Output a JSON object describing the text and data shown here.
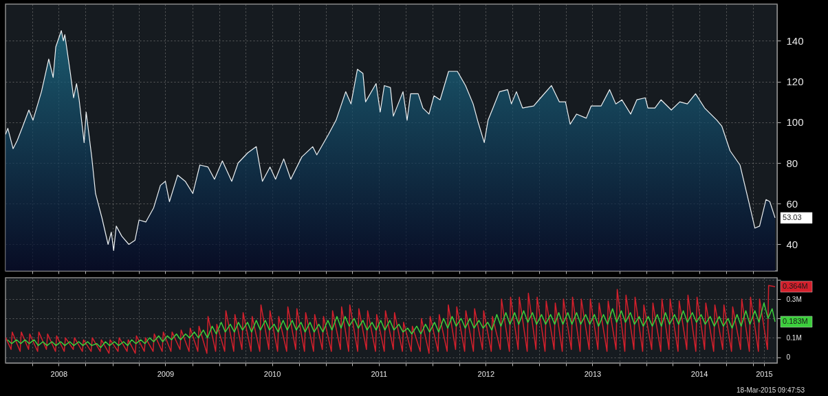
{
  "chart_data": [
    {
      "type": "area",
      "color": "#eef2f4",
      "x": [
        "2008-01-01",
        "2008-01-09",
        "2008-01-27",
        "2008-02-10",
        "2008-02-29",
        "2008-03-21",
        "2008-04-04",
        "2008-05-03",
        "2008-05-28",
        "2008-06-12",
        "2008-06-21",
        "2008-07-10",
        "2008-07-17",
        "2008-07-22",
        "2008-08-10",
        "2008-08-21",
        "2008-08-31",
        "2008-09-09",
        "2008-09-26",
        "2008-10-03",
        "2008-10-22",
        "2008-11-04",
        "2008-11-26",
        "2008-12-17",
        "2008-12-28",
        "2009-01-05",
        "2009-01-14",
        "2009-02-02",
        "2009-02-26",
        "2009-03-19",
        "2009-04-02",
        "2009-04-25",
        "2009-05-22",
        "2009-06-14",
        "2009-07-01",
        "2009-07-15",
        "2009-08-12",
        "2009-09-07",
        "2009-10-03",
        "2009-10-27",
        "2009-11-24",
        "2009-12-16",
        "2010-01-12",
        "2010-02-13",
        "2010-03-07",
        "2010-04-09",
        "2010-05-08",
        "2010-05-29",
        "2010-06-24",
        "2010-07-13",
        "2010-08-10",
        "2010-09-03",
        "2010-10-11",
        "2010-11-17",
        "2010-12-01",
        "2011-01-10",
        "2011-02-05",
        "2011-03-10",
        "2011-03-28",
        "2011-04-19",
        "2011-05-08",
        "2011-05-17",
        "2011-06-22",
        "2011-07-06",
        "2011-07-20",
        "2011-08-10",
        "2011-08-20",
        "2011-09-22",
        "2011-10-06",
        "2011-10-18",
        "2011-11-13",
        "2011-11-29",
        "2011-12-20",
        "2012-01-06",
        "2012-01-27",
        "2012-02-25",
        "2012-03-26",
        "2012-04-23",
        "2012-05-19",
        "2012-06-05",
        "2012-06-26",
        "2012-07-09",
        "2012-07-26",
        "2012-08-17",
        "2012-09-14",
        "2012-09-27",
        "2012-10-14",
        "2012-11-04",
        "2012-12-12",
        "2013-01-05",
        "2013-02-11",
        "2013-03-10",
        "2013-03-31",
        "2013-04-16",
        "2013-05-08",
        "2013-06-10",
        "2013-06-27",
        "2013-07-31",
        "2013-08-29",
        "2013-09-19",
        "2013-10-10",
        "2013-11-09",
        "2013-11-30",
        "2013-12-29",
        "2014-01-07",
        "2014-01-31",
        "2014-02-21",
        "2014-03-28",
        "2014-04-26",
        "2014-05-22",
        "2014-06-19",
        "2014-07-20",
        "2014-08-31",
        "2014-09-17",
        "2014-10-15",
        "2014-11-18",
        "2014-12-18",
        "2015-01-08",
        "2015-01-24",
        "2015-02-15",
        "2015-02-28",
        "2015-03-18"
      ],
      "values": [
        94,
        97,
        87,
        91,
        98,
        106,
        101,
        115,
        131,
        122,
        137,
        145,
        140,
        143,
        124,
        112,
        119,
        111,
        90,
        105,
        83,
        65,
        53,
        40,
        46,
        37,
        49,
        44,
        40,
        42,
        52,
        51,
        58,
        69,
        71,
        61,
        74,
        71,
        65,
        79,
        78,
        72,
        81,
        71,
        80,
        85,
        88,
        71,
        78,
        72,
        82,
        72,
        83,
        88,
        84,
        94,
        101,
        115,
        109,
        126,
        124,
        110,
        119,
        105,
        118,
        117,
        103,
        115,
        101,
        114,
        114,
        107,
        104,
        113,
        111,
        125,
        125,
        118,
        109,
        100,
        90,
        101,
        107,
        115,
        116,
        109,
        115,
        107,
        108,
        112,
        118,
        110,
        110,
        99,
        104,
        102,
        108,
        108,
        116,
        109,
        111,
        104,
        111,
        112,
        107,
        107,
        111,
        106,
        110,
        109,
        114,
        107,
        101,
        98,
        86,
        79,
        61,
        48,
        49,
        62,
        61,
        53.03
      ],
      "xlim": [
        "2008-01-01",
        "2015-03-25"
      ],
      "ylim": [
        27,
        158
      ],
      "yticks": [
        40,
        60,
        80,
        100,
        120,
        140
      ],
      "xticks": [
        {
          "value": "2008-04-01",
          "label": null
        },
        {
          "value": "2008-07-01",
          "label": null
        },
        {
          "value": "2008-10-01",
          "label": null
        },
        {
          "value": "2009-01-01",
          "label": null
        },
        {
          "value": "2009-04-01",
          "label": null
        },
        {
          "value": "2009-07-01",
          "label": null
        },
        {
          "value": "2009-10-01",
          "label": null
        },
        {
          "value": "2010-01-01",
          "label": null
        },
        {
          "value": "2010-04-01",
          "label": null
        },
        {
          "value": "2010-07-01",
          "label": null
        },
        {
          "value": "2010-10-01",
          "label": null
        },
        {
          "value": "2011-01-01",
          "label": null
        },
        {
          "value": "2011-04-01",
          "label": null
        },
        {
          "value": "2011-07-01",
          "label": null
        },
        {
          "value": "2011-10-01",
          "label": null
        },
        {
          "value": "2012-01-01",
          "label": null
        },
        {
          "value": "2012-04-01",
          "label": null
        },
        {
          "value": "2012-07-01",
          "label": null
        },
        {
          "value": "2012-10-01",
          "label": null
        },
        {
          "value": "2013-01-01",
          "label": null
        },
        {
          "value": "2013-04-01",
          "label": null
        },
        {
          "value": "2013-07-01",
          "label": null
        },
        {
          "value": "2013-10-01",
          "label": null
        },
        {
          "value": "2014-01-01",
          "label": null
        },
        {
          "value": "2014-04-01",
          "label": null
        },
        {
          "value": "2014-07-01",
          "label": null
        },
        {
          "value": "2014-10-01",
          "label": null
        },
        {
          "value": "2015-01-01",
          "label": null
        }
      ],
      "tick_labels": "y",
      "grid": true,
      "annotations": [
        {
          "text": "53.03",
          "x": "2015-03-18",
          "y": 53.03
        }
      ]
    },
    {
      "type": "line",
      "series": [
        {
          "color": "#d4202c",
          "x": [
            "2008-01-02",
            "2008-01-20",
            "2008-01-24",
            "2008-02-20",
            "2008-02-24",
            "2008-03-20",
            "2008-03-24",
            "2008-04-20",
            "2008-04-24",
            "2008-05-20",
            "2008-05-24",
            "2008-06-20",
            "2008-06-24",
            "2008-07-20",
            "2008-07-24",
            "2008-08-20",
            "2008-08-24",
            "2008-09-20",
            "2008-09-24",
            "2008-10-20",
            "2008-10-24",
            "2008-11-20",
            "2008-11-24",
            "2008-12-20",
            "2008-12-24",
            "2009-01-20",
            "2009-01-24",
            "2009-02-20",
            "2009-02-24",
            "2009-03-20",
            "2009-03-24",
            "2009-04-20",
            "2009-04-24",
            "2009-05-20",
            "2009-05-24",
            "2009-06-20",
            "2009-06-24",
            "2009-07-20",
            "2009-07-24",
            "2009-08-20",
            "2009-08-24",
            "2009-09-20",
            "2009-09-24",
            "2009-10-20",
            "2009-10-24",
            "2009-11-20",
            "2009-11-24",
            "2009-12-20",
            "2009-12-24",
            "2010-01-20",
            "2010-01-24",
            "2010-02-20",
            "2010-02-24",
            "2010-03-20",
            "2010-03-24",
            "2010-04-20",
            "2010-04-24",
            "2010-05-20",
            "2010-05-24",
            "2010-06-20",
            "2010-06-24",
            "2010-07-20",
            "2010-07-24",
            "2010-08-20",
            "2010-08-24",
            "2010-09-20",
            "2010-09-24",
            "2010-10-20",
            "2010-10-24",
            "2010-11-20",
            "2010-11-24",
            "2010-12-20",
            "2010-12-24",
            "2011-01-20",
            "2011-01-24",
            "2011-02-20",
            "2011-02-24",
            "2011-03-20",
            "2011-03-24",
            "2011-04-20",
            "2011-04-24",
            "2011-05-20",
            "2011-05-24",
            "2011-06-20",
            "2011-06-24",
            "2011-07-20",
            "2011-07-24",
            "2011-08-20",
            "2011-08-24",
            "2011-09-20",
            "2011-09-24",
            "2011-10-20",
            "2011-10-24",
            "2011-11-20",
            "2011-11-24",
            "2011-12-20",
            "2011-12-24",
            "2012-01-20",
            "2012-01-24",
            "2012-02-20",
            "2012-02-24",
            "2012-03-20",
            "2012-03-24",
            "2012-04-20",
            "2012-04-24",
            "2012-05-20",
            "2012-05-24",
            "2012-06-20",
            "2012-06-24",
            "2012-07-20",
            "2012-07-24",
            "2012-08-20",
            "2012-08-24",
            "2012-09-20",
            "2012-09-24",
            "2012-10-20",
            "2012-10-24",
            "2012-11-20",
            "2012-11-24",
            "2012-12-20",
            "2012-12-24",
            "2013-01-20",
            "2013-01-24",
            "2013-02-20",
            "2013-02-24",
            "2013-03-20",
            "2013-03-24",
            "2013-04-20",
            "2013-04-24",
            "2013-05-20",
            "2013-05-24",
            "2013-06-20",
            "2013-06-24",
            "2013-07-20",
            "2013-07-24",
            "2013-08-20",
            "2013-08-24",
            "2013-09-20",
            "2013-09-24",
            "2013-10-20",
            "2013-10-24",
            "2013-11-20",
            "2013-11-24",
            "2013-12-20",
            "2013-12-24",
            "2014-01-20",
            "2014-01-24",
            "2014-02-20",
            "2014-02-24",
            "2014-03-20",
            "2014-03-24",
            "2014-04-20",
            "2014-04-24",
            "2014-05-20",
            "2014-05-24",
            "2014-06-20",
            "2014-06-24",
            "2014-07-20",
            "2014-07-24",
            "2014-08-20",
            "2014-08-24",
            "2014-09-20",
            "2014-09-24",
            "2014-10-20",
            "2014-10-24",
            "2014-11-20",
            "2014-11-24",
            "2014-12-20",
            "2014-12-24",
            "2015-01-20",
            "2015-01-24",
            "2015-02-20",
            "2015-02-24",
            "2015-03-18"
          ],
          "values": [
            0.1,
            0.04,
            0.13,
            0.03,
            0.13,
            0.04,
            0.12,
            0.03,
            0.13,
            0.04,
            0.12,
            0.03,
            0.11,
            0.03,
            0.1,
            0.04,
            0.1,
            0.03,
            0.09,
            0.03,
            0.1,
            0.03,
            0.09,
            0.02,
            0.09,
            0.03,
            0.1,
            0.03,
            0.09,
            0.02,
            0.11,
            0.03,
            0.1,
            0.03,
            0.12,
            0.03,
            0.13,
            0.03,
            0.13,
            0.04,
            0.14,
            0.03,
            0.15,
            0.03,
            0.16,
            0.02,
            0.21,
            0.03,
            0.17,
            0.03,
            0.24,
            0.03,
            0.22,
            0.04,
            0.23,
            0.03,
            0.21,
            0.03,
            0.27,
            0.04,
            0.24,
            0.03,
            0.21,
            0.03,
            0.26,
            0.04,
            0.25,
            0.03,
            0.23,
            0.03,
            0.22,
            0.04,
            0.21,
            0.03,
            0.24,
            0.04,
            0.26,
            0.03,
            0.27,
            0.03,
            0.25,
            0.04,
            0.24,
            0.03,
            0.22,
            0.03,
            0.24,
            0.04,
            0.23,
            0.03,
            0.18,
            0.03,
            0.16,
            0.03,
            0.2,
            0.02,
            0.21,
            0.03,
            0.22,
            0.03,
            0.27,
            0.04,
            0.26,
            0.03,
            0.24,
            0.03,
            0.25,
            0.04,
            0.24,
            0.03,
            0.21,
            0.04,
            0.3,
            0.03,
            0.31,
            0.04,
            0.31,
            0.03,
            0.33,
            0.04,
            0.31,
            0.03,
            0.29,
            0.04,
            0.28,
            0.03,
            0.3,
            0.04,
            0.31,
            0.03,
            0.3,
            0.04,
            0.3,
            0.04,
            0.28,
            0.03,
            0.29,
            0.04,
            0.35,
            0.03,
            0.32,
            0.04,
            0.31,
            0.03,
            0.27,
            0.04,
            0.28,
            0.03,
            0.3,
            0.04,
            0.3,
            0.03,
            0.29,
            0.04,
            0.32,
            0.03,
            0.31,
            0.04,
            0.28,
            0.03,
            0.27,
            0.04,
            0.27,
            0.03,
            0.26,
            0.04,
            0.3,
            0.03,
            0.31,
            0.03,
            0.3,
            0.04,
            0.37,
            0.364
          ]
        },
        {
          "color": "#3ccf3c",
          "x": [
            "2008-01-08",
            "2008-01-22",
            "2008-02-08",
            "2008-02-22",
            "2008-03-08",
            "2008-03-22",
            "2008-04-08",
            "2008-04-22",
            "2008-05-08",
            "2008-05-22",
            "2008-06-08",
            "2008-06-22",
            "2008-07-08",
            "2008-07-22",
            "2008-08-08",
            "2008-08-22",
            "2008-09-08",
            "2008-09-22",
            "2008-10-08",
            "2008-10-22",
            "2008-11-08",
            "2008-11-22",
            "2008-12-08",
            "2008-12-22",
            "2009-01-08",
            "2009-01-22",
            "2009-02-08",
            "2009-02-22",
            "2009-03-08",
            "2009-03-22",
            "2009-04-08",
            "2009-04-22",
            "2009-05-08",
            "2009-05-22",
            "2009-06-08",
            "2009-06-22",
            "2009-07-08",
            "2009-07-22",
            "2009-08-08",
            "2009-08-22",
            "2009-09-08",
            "2009-09-22",
            "2009-10-08",
            "2009-10-22",
            "2009-11-08",
            "2009-11-22",
            "2009-12-08",
            "2009-12-22",
            "2010-01-08",
            "2010-01-22",
            "2010-02-08",
            "2010-02-22",
            "2010-03-08",
            "2010-03-22",
            "2010-04-08",
            "2010-04-22",
            "2010-05-08",
            "2010-05-22",
            "2010-06-08",
            "2010-06-22",
            "2010-07-08",
            "2010-07-22",
            "2010-08-08",
            "2010-08-22",
            "2010-09-08",
            "2010-09-22",
            "2010-10-08",
            "2010-10-22",
            "2010-11-08",
            "2010-11-22",
            "2010-12-08",
            "2010-12-22",
            "2011-01-08",
            "2011-01-22",
            "2011-02-08",
            "2011-02-22",
            "2011-03-08",
            "2011-03-22",
            "2011-04-08",
            "2011-04-22",
            "2011-05-08",
            "2011-05-22",
            "2011-06-08",
            "2011-06-22",
            "2011-07-08",
            "2011-07-22",
            "2011-08-08",
            "2011-08-22",
            "2011-09-08",
            "2011-09-22",
            "2011-10-08",
            "2011-10-22",
            "2011-11-08",
            "2011-11-22",
            "2011-12-08",
            "2011-12-22",
            "2012-01-08",
            "2012-01-22",
            "2012-02-08",
            "2012-02-22",
            "2012-03-08",
            "2012-03-22",
            "2012-04-08",
            "2012-04-22",
            "2012-05-08",
            "2012-05-22",
            "2012-06-08",
            "2012-06-22",
            "2012-07-08",
            "2012-07-22",
            "2012-08-08",
            "2012-08-22",
            "2012-09-08",
            "2012-09-22",
            "2012-10-08",
            "2012-10-22",
            "2012-11-08",
            "2012-11-22",
            "2012-12-08",
            "2012-12-22",
            "2013-01-08",
            "2013-01-22",
            "2013-02-08",
            "2013-02-22",
            "2013-03-08",
            "2013-03-22",
            "2013-04-08",
            "2013-04-22",
            "2013-05-08",
            "2013-05-22",
            "2013-06-08",
            "2013-06-22",
            "2013-07-08",
            "2013-07-22",
            "2013-08-08",
            "2013-08-22",
            "2013-09-08",
            "2013-09-22",
            "2013-10-08",
            "2013-10-22",
            "2013-11-08",
            "2013-11-22",
            "2013-12-08",
            "2013-12-22",
            "2014-01-08",
            "2014-01-22",
            "2014-02-08",
            "2014-02-22",
            "2014-03-08",
            "2014-03-22",
            "2014-04-08",
            "2014-04-22",
            "2014-05-08",
            "2014-05-22",
            "2014-06-08",
            "2014-06-22",
            "2014-07-08",
            "2014-07-22",
            "2014-08-08",
            "2014-08-22",
            "2014-09-08",
            "2014-09-22",
            "2014-10-08",
            "2014-10-22",
            "2014-11-08",
            "2014-11-22",
            "2014-12-08",
            "2014-12-22",
            "2015-01-08",
            "2015-01-22",
            "2015-02-08",
            "2015-02-22",
            "2015-03-08",
            "2015-03-18"
          ],
          "values": [
            0.09,
            0.07,
            0.09,
            0.07,
            0.09,
            0.07,
            0.09,
            0.06,
            0.08,
            0.06,
            0.08,
            0.06,
            0.08,
            0.06,
            0.08,
            0.06,
            0.08,
            0.06,
            0.08,
            0.06,
            0.07,
            0.05,
            0.08,
            0.06,
            0.08,
            0.06,
            0.08,
            0.06,
            0.09,
            0.07,
            0.09,
            0.07,
            0.1,
            0.08,
            0.11,
            0.08,
            0.11,
            0.09,
            0.12,
            0.09,
            0.12,
            0.1,
            0.13,
            0.1,
            0.14,
            0.1,
            0.16,
            0.12,
            0.18,
            0.13,
            0.17,
            0.13,
            0.18,
            0.14,
            0.18,
            0.13,
            0.19,
            0.14,
            0.19,
            0.14,
            0.17,
            0.13,
            0.19,
            0.14,
            0.19,
            0.14,
            0.18,
            0.13,
            0.18,
            0.13,
            0.17,
            0.13,
            0.19,
            0.14,
            0.21,
            0.15,
            0.21,
            0.16,
            0.2,
            0.15,
            0.19,
            0.14,
            0.18,
            0.14,
            0.19,
            0.14,
            0.19,
            0.14,
            0.17,
            0.13,
            0.15,
            0.12,
            0.16,
            0.12,
            0.17,
            0.13,
            0.18,
            0.13,
            0.2,
            0.15,
            0.21,
            0.16,
            0.2,
            0.15,
            0.2,
            0.15,
            0.19,
            0.15,
            0.18,
            0.14,
            0.22,
            0.16,
            0.23,
            0.17,
            0.23,
            0.17,
            0.24,
            0.18,
            0.23,
            0.17,
            0.22,
            0.17,
            0.22,
            0.17,
            0.23,
            0.17,
            0.23,
            0.17,
            0.23,
            0.17,
            0.22,
            0.17,
            0.22,
            0.16,
            0.22,
            0.17,
            0.25,
            0.18,
            0.24,
            0.18,
            0.23,
            0.17,
            0.21,
            0.16,
            0.21,
            0.16,
            0.22,
            0.16,
            0.23,
            0.17,
            0.22,
            0.17,
            0.24,
            0.18,
            0.23,
            0.18,
            0.22,
            0.17,
            0.21,
            0.16,
            0.21,
            0.16,
            0.2,
            0.15,
            0.22,
            0.16,
            0.24,
            0.17,
            0.24,
            0.18,
            0.28,
            0.2,
            0.25,
            0.183
          ]
        }
      ],
      "xlim": [
        "2008-01-01",
        "2015-03-25"
      ],
      "ylim": [
        -0.03,
        0.41
      ],
      "yticks": [
        {
          "value": 0,
          "label": "0"
        },
        {
          "value": 0.1,
          "label": "0.1M"
        },
        {
          "value": 0.2,
          "label": null
        },
        {
          "value": 0.3,
          "label": "0.3M"
        },
        {
          "value": 0.4,
          "label": null
        }
      ],
      "xticks": [
        {
          "value": "2008-04-01",
          "label": null
        },
        {
          "value": "2008-07-01",
          "label": "2008"
        },
        {
          "value": "2008-10-01",
          "label": null
        },
        {
          "value": "2009-01-01",
          "label": null
        },
        {
          "value": "2009-04-01",
          "label": null
        },
        {
          "value": "2009-07-01",
          "label": "2009"
        },
        {
          "value": "2009-10-01",
          "label": null
        },
        {
          "value": "2010-01-01",
          "label": null
        },
        {
          "value": "2010-04-01",
          "label": null
        },
        {
          "value": "2010-07-01",
          "label": "2010"
        },
        {
          "value": "2010-10-01",
          "label": null
        },
        {
          "value": "2011-01-01",
          "label": null
        },
        {
          "value": "2011-04-01",
          "label": null
        },
        {
          "value": "2011-07-01",
          "label": "2011"
        },
        {
          "value": "2011-10-01",
          "label": null
        },
        {
          "value": "2012-01-01",
          "label": null
        },
        {
          "value": "2012-04-01",
          "label": null
        },
        {
          "value": "2012-07-01",
          "label": "2012"
        },
        {
          "value": "2012-10-01",
          "label": null
        },
        {
          "value": "2013-01-01",
          "label": null
        },
        {
          "value": "2013-04-01",
          "label": null
        },
        {
          "value": "2013-07-01",
          "label": "2013"
        },
        {
          "value": "2013-10-01",
          "label": null
        },
        {
          "value": "2014-01-01",
          "label": null
        },
        {
          "value": "2014-04-01",
          "label": null
        },
        {
          "value": "2014-07-01",
          "label": "2014"
        },
        {
          "value": "2014-10-01",
          "label": null
        },
        {
          "value": "2015-01-01",
          "label": null
        },
        {
          "value": "2015-02-08",
          "label": "2015"
        }
      ],
      "grid": true,
      "annotations": [
        {
          "text": "0.364M",
          "x": "2015-03-18",
          "y": 0.364
        },
        {
          "text": "0.183M",
          "x": "2015-03-18",
          "y": 0.183
        },
        "18-Mar-2015 09:47:53"
      ]
    }
  ]
}
